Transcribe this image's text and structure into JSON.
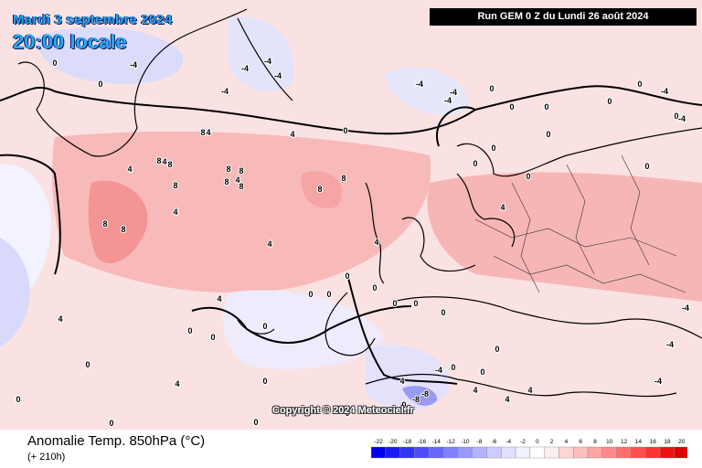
{
  "header": {
    "date": "Mardi 3 septembre 2024",
    "time": "20:00 locale",
    "run": "Run GEM 0 Z du Lundi 26 août 2024"
  },
  "copyright": "Copyright © 2024 Meteociel.fr",
  "footer": {
    "variable": "Anomalie Temp. 850hPa (°C)",
    "lead": "(+ 210h)"
  },
  "legend": {
    "ticks": [
      "-22",
      "-20",
      "-18",
      "-16",
      "-14",
      "-12",
      "-10",
      "-8",
      "-6",
      "-4",
      "-2",
      "0",
      "2",
      "4",
      "6",
      "8",
      "10",
      "12",
      "14",
      "16",
      "18",
      "20"
    ],
    "colors": [
      "#0000ee",
      "#1a1af2",
      "#3333f5",
      "#4d4df7",
      "#6666f9",
      "#8080fb",
      "#9999fc",
      "#b3b3fd",
      "#ccccfe",
      "#e0e0ff",
      "#f2f2ff",
      "#ffffff",
      "#ffeeee",
      "#ffd6d6",
      "#ffbdbd",
      "#ffa3a3",
      "#ff8888",
      "#ff6d6d",
      "#ff5050",
      "#ff3333",
      "#ee1111",
      "#dd0000"
    ]
  },
  "contour_labels": [
    "0",
    "0",
    "0",
    "0",
    "0",
    "0",
    "0",
    "0",
    "0",
    "0",
    "0",
    "0",
    "0",
    "0",
    "0",
    "0",
    "0",
    "0",
    "0",
    "0",
    "0",
    "0",
    "0",
    "0",
    "0",
    "0",
    "0",
    "0",
    "0",
    "0",
    "0",
    "0",
    "0",
    "0",
    "4",
    "4",
    "4",
    "4",
    "4",
    "4",
    "4",
    "4",
    "4",
    "4",
    "4",
    "4",
    "4",
    "4",
    "4",
    "4",
    "8",
    "8",
    "8",
    "8",
    "8",
    "8",
    "8",
    "8",
    "8",
    "8",
    "8",
    "8",
    "-4",
    "-4",
    "-4",
    "-4",
    "-4",
    "-4",
    "-4",
    "-4",
    "-4",
    "-4",
    "-4",
    "-4",
    "-4",
    "-4",
    "-8",
    "-8"
  ]
}
